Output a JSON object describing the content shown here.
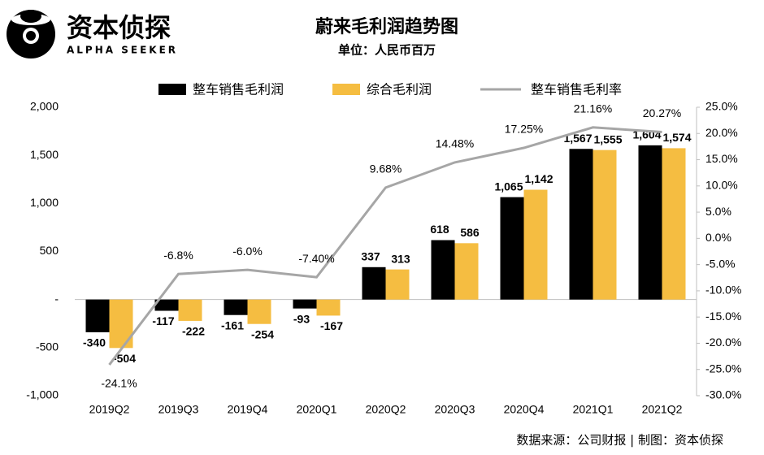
{
  "brand": {
    "name": "资本侦探",
    "tagline": "ALPHA SEEKER"
  },
  "chart_data": {
    "type": "bar",
    "title": "蔚来毛利润趋势图",
    "subtitle": "单位：人民币百万",
    "source": "数据来源：公司财报 | 制图：资本侦探",
    "categories": [
      "2019Q2",
      "2019Q3",
      "2019Q4",
      "2020Q1",
      "2020Q2",
      "2020Q3",
      "2020Q4",
      "2021Q1",
      "2021Q2"
    ],
    "series": [
      {
        "name": "整车销售毛利润",
        "color": "#000000",
        "values": [
          -340,
          -117,
          -161,
          -93,
          337,
          618,
          1065,
          1567,
          1604
        ],
        "value_labels": [
          "-340",
          "-117",
          "-161",
          "-93",
          "337",
          "618",
          "1,065",
          "1,567",
          "1,604"
        ]
      },
      {
        "name": "综合毛利润",
        "color": "#f5bd41",
        "values": [
          -504,
          -222,
          -254,
          -167,
          313,
          586,
          1142,
          1555,
          1574
        ],
        "value_labels": [
          "-504",
          "-222",
          "-254",
          "-167",
          "313",
          "586",
          "1,142",
          "1,555",
          "1,574"
        ]
      },
      {
        "name": "整车销售毛利率",
        "color": "#a6a6a6",
        "type": "line",
        "axis": "y2",
        "values": [
          -24.1,
          -6.8,
          -6.0,
          -7.4,
          9.68,
          14.48,
          17.25,
          21.16,
          20.27
        ],
        "value_labels": [
          "-24.1%",
          "-6.8%",
          "-6.0%",
          "-7.40%",
          "9.68%",
          "14.48%",
          "17.25%",
          "21.16%",
          "20.27%"
        ]
      }
    ],
    "ylim": [
      -1000,
      2000
    ],
    "yticks": [
      {
        "value": -1000,
        "label": "-1,000"
      },
      -500,
      {
        "value": 0,
        "label": "-"
      },
      500,
      {
        "value": 1000,
        "label": "1,000"
      },
      {
        "value": 1500,
        "label": "1,500"
      },
      {
        "value": 2000,
        "label": "2,000"
      }
    ],
    "y2lim": [
      -30,
      25
    ],
    "y2ticks": [
      {
        "value": -30,
        "label": "-30.0%"
      },
      {
        "value": -25,
        "label": "-25.0%"
      },
      {
        "value": -20,
        "label": "-20.0%"
      },
      {
        "value": -15,
        "label": "-15.0%"
      },
      {
        "value": -10,
        "label": "-10.0%"
      },
      {
        "value": -5,
        "label": "-5.0%"
      },
      {
        "value": 0,
        "label": "0.0%"
      },
      {
        "value": 5,
        "label": "5.0%"
      },
      {
        "value": 10,
        "label": "10.0%"
      },
      {
        "value": 15,
        "label": "15.0%"
      },
      {
        "value": 20,
        "label": "20.0%"
      },
      {
        "value": 25,
        "label": "25.0%"
      }
    ],
    "grid": false,
    "legend": "top"
  }
}
